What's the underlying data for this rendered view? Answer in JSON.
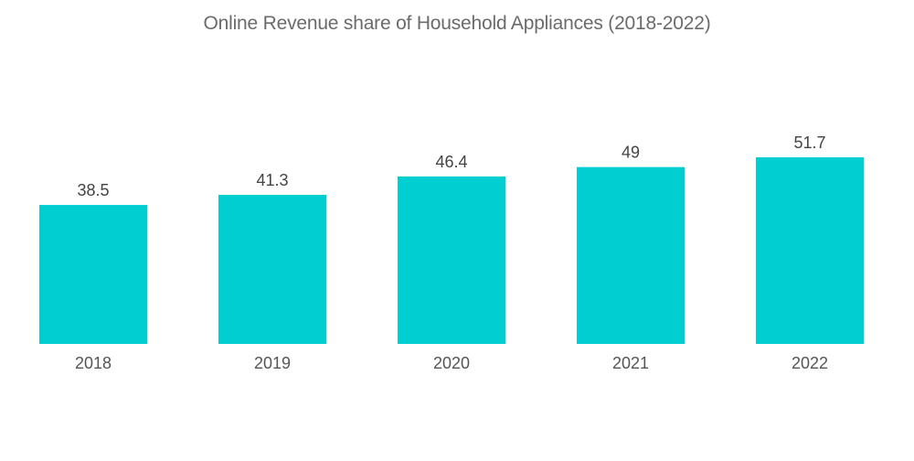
{
  "chart_data": {
    "type": "bar",
    "title": "Online Revenue share of Household Appliances (2018-2022)",
    "categories": [
      "2018",
      "2019",
      "2020",
      "2021",
      "2022"
    ],
    "values": [
      38.5,
      41.3,
      46.4,
      49,
      51.7
    ],
    "value_labels": [
      "38.5",
      "41.3",
      "46.4",
      "49",
      "51.7"
    ],
    "xlabel": "",
    "ylabel": "",
    "ylim": [
      0,
      51.7
    ],
    "grid": false,
    "legend": "none",
    "bar_color": "#00ced1"
  }
}
